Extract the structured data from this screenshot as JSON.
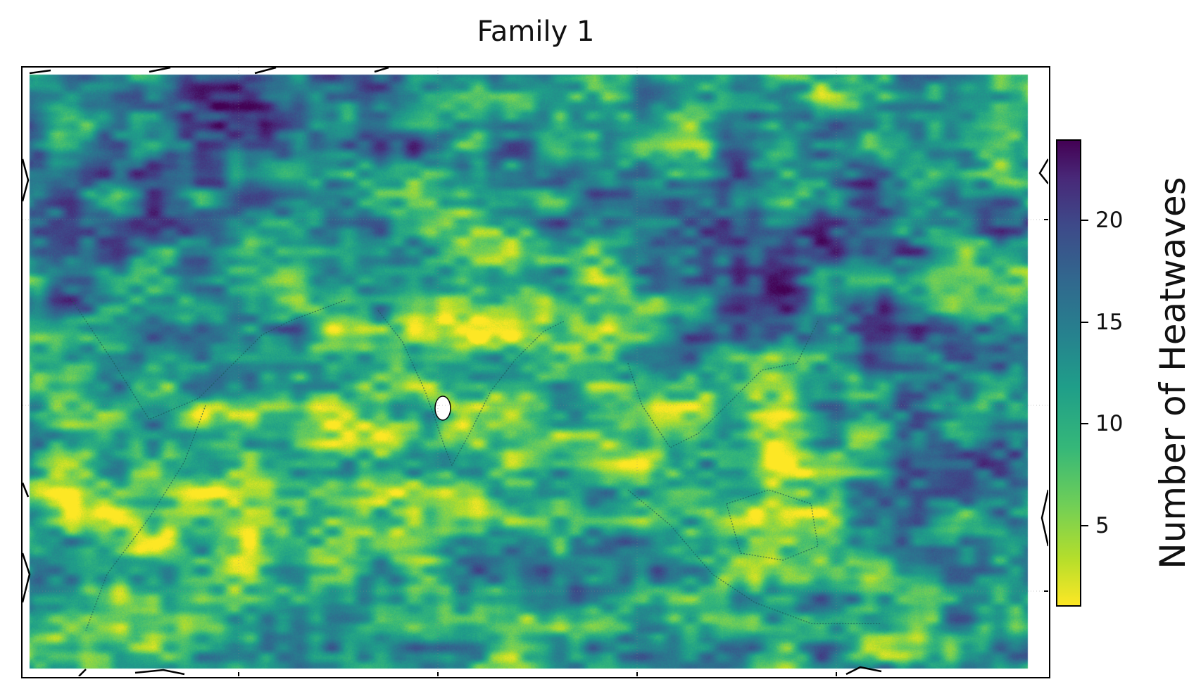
{
  "title": "Family 1",
  "colorbar": {
    "label": "Number of Heatwaves",
    "colormap": "viridis (reversed)",
    "range": [
      1,
      24
    ],
    "ticks": [
      {
        "value": 5,
        "label": "5"
      },
      {
        "value": 10,
        "label": "10"
      },
      {
        "value": 15,
        "label": "15"
      },
      {
        "value": 20,
        "label": "20"
      }
    ],
    "colors": [
      "#fde725",
      "#b5de2b",
      "#6ece58",
      "#35b779",
      "#1f9e89",
      "#26828e",
      "#31688e",
      "#3e4989",
      "#482878",
      "#440154"
    ]
  },
  "map": {
    "region": "South and Southeast Asia, Indian Ocean, Arabian Peninsula, East Africa",
    "coastlines": true,
    "gridlines": true,
    "style": "heatmap"
  }
}
